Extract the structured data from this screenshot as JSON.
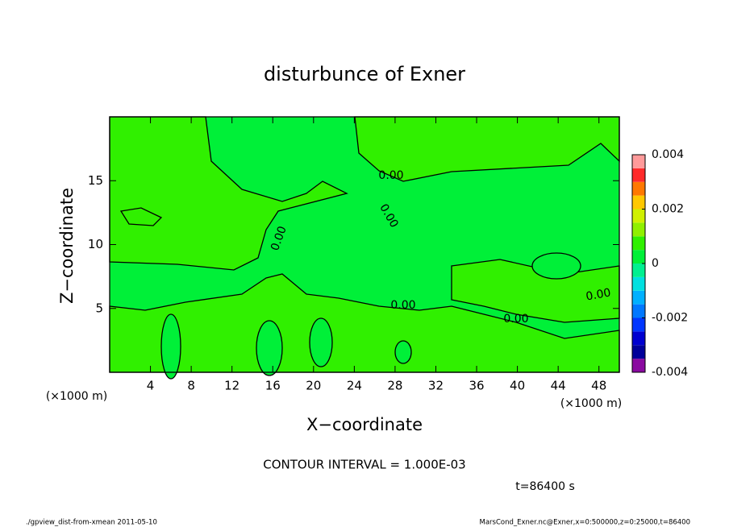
{
  "chart_data": {
    "type": "contour",
    "title": "disturbunce of Exner",
    "xlabel": "X−coordinate",
    "ylabel": "Z−coordinate",
    "xunit": "(×1000 m)",
    "yunit": "(×1000 m)",
    "xlim": [
      0,
      50
    ],
    "ylim": [
      0,
      20
    ],
    "xticks": [
      4,
      8,
      12,
      16,
      20,
      24,
      28,
      32,
      36,
      40,
      44,
      48
    ],
    "yticks": [
      5,
      10,
      15
    ],
    "contour_labels": [
      "0.00",
      "0.00",
      "0.00",
      "0.00",
      "0.00",
      "0.00"
    ],
    "contour_note": "CONTOUR INTERVAL = 1.000E-03",
    "time_label": "t=86400 s",
    "footer_left": "./gpview_dist-from-xmean  2011-05-10",
    "footer_right": "MarsCond_Exner.nc@Exner,x=0:500000,z=0:25000,t=86400",
    "colorbar": {
      "levels": [
        -0.004,
        -0.0035,
        -0.003,
        -0.0025,
        -0.002,
        -0.0015,
        -0.001,
        -0.0005,
        0,
        0.0005,
        0.001,
        0.0015,
        0.002,
        0.0025,
        0.003,
        0.0035,
        0.004
      ],
      "colors": [
        "#8a0aa0",
        "#00009a",
        "#0000d0",
        "#0036ff",
        "#0078ff",
        "#00b0ff",
        "#00e0e0",
        "#00f090",
        "#00f038",
        "#30f000",
        "#90f000",
        "#d0f000",
        "#ffc800",
        "#ff7800",
        "#ff2a2a",
        "#ff9a9a"
      ],
      "ticks": [
        -0.004,
        -0.002,
        0,
        0.002,
        0.004
      ]
    }
  }
}
